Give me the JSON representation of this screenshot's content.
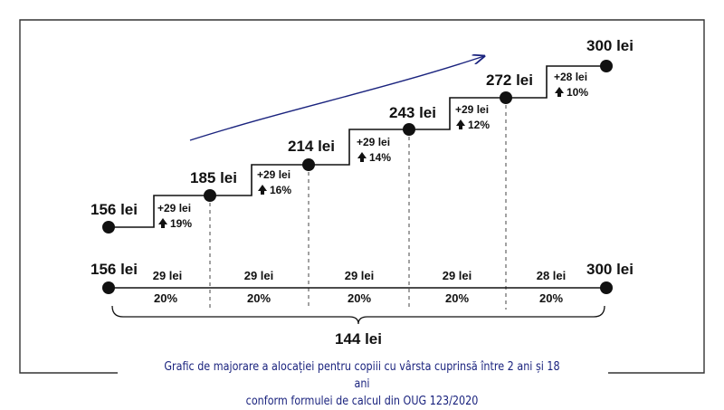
{
  "steps": [
    {
      "value_label": "156 lei",
      "amount": 156
    },
    {
      "value_label": "185 lei",
      "amount": 185,
      "increase": "+29 lei",
      "percent": "19%"
    },
    {
      "value_label": "214 lei",
      "amount": 214,
      "increase": "+29 lei",
      "percent": "16%"
    },
    {
      "value_label": "243 lei",
      "amount": 243,
      "increase": "+29 lei",
      "percent": "14%"
    },
    {
      "value_label": "272 lei",
      "amount": 272,
      "increase": "+29 lei",
      "percent": "12%"
    },
    {
      "value_label": "300 lei",
      "amount": 300,
      "increase": "+28 lei",
      "percent": "10%"
    }
  ],
  "timeline": {
    "start_label": "156 lei",
    "end_label": "300 lei",
    "segments": [
      {
        "amount": "29 lei",
        "percent": "20%"
      },
      {
        "amount": "29 lei",
        "percent": "20%"
      },
      {
        "amount": "29 lei",
        "percent": "20%"
      },
      {
        "amount": "29 lei",
        "percent": "20%"
      },
      {
        "amount": "28 lei",
        "percent": "20%"
      }
    ],
    "total_label": "144 lei"
  },
  "caption": {
    "line1": "Grafic de majorare a alocației pentru copiii cu vârsta cuprinsă între 2 ani și 18 ani",
    "line2": "conform formulei de calcul din OUG 123/2020"
  },
  "colors": {
    "line": "#111111",
    "arrow": "#1a237e",
    "caption": "#1a237e",
    "frame": "#333333"
  },
  "icons": {
    "increase_arrow": "up-arrow-icon",
    "trend_arrow": "trend-arrow-icon"
  }
}
